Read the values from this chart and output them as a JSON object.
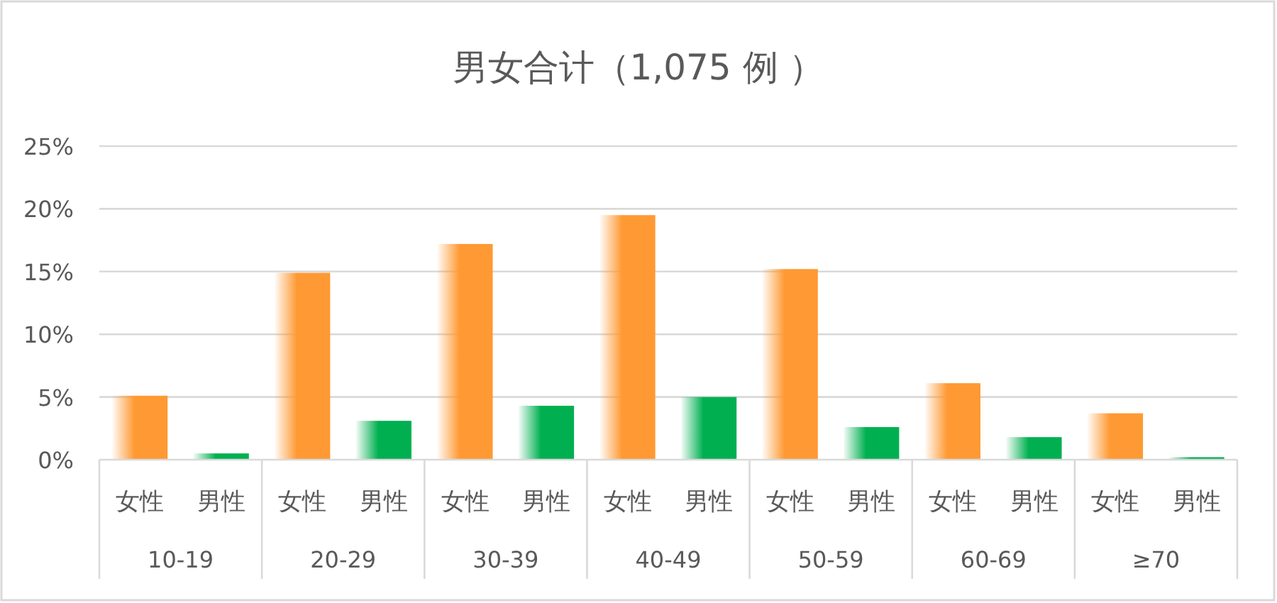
{
  "chart_data": {
    "type": "bar",
    "title": "男女合计（1,075 例 ）",
    "categories": [
      "10-19",
      "20-29",
      "30-39",
      "40-49",
      "50-59",
      "60-69",
      "≥70"
    ],
    "series": [
      {
        "name": "女性",
        "color": "#ff9933",
        "values": [
          5.1,
          14.9,
          17.2,
          19.5,
          15.2,
          6.1,
          3.7
        ]
      },
      {
        "name": "男性",
        "color": "#00b050",
        "values": [
          0.5,
          3.1,
          4.3,
          5.0,
          2.6,
          1.8,
          0.2
        ]
      }
    ],
    "ylim": [
      0,
      25
    ],
    "yticks": [
      {
        "value": 0,
        "label": "0%"
      },
      {
        "value": 5,
        "label": "5%"
      },
      {
        "value": 10,
        "label": "10%"
      },
      {
        "value": 15,
        "label": "15%"
      },
      {
        "value": 20,
        "label": "20%"
      },
      {
        "value": 25,
        "label": "25%"
      }
    ],
    "grid": "y"
  }
}
